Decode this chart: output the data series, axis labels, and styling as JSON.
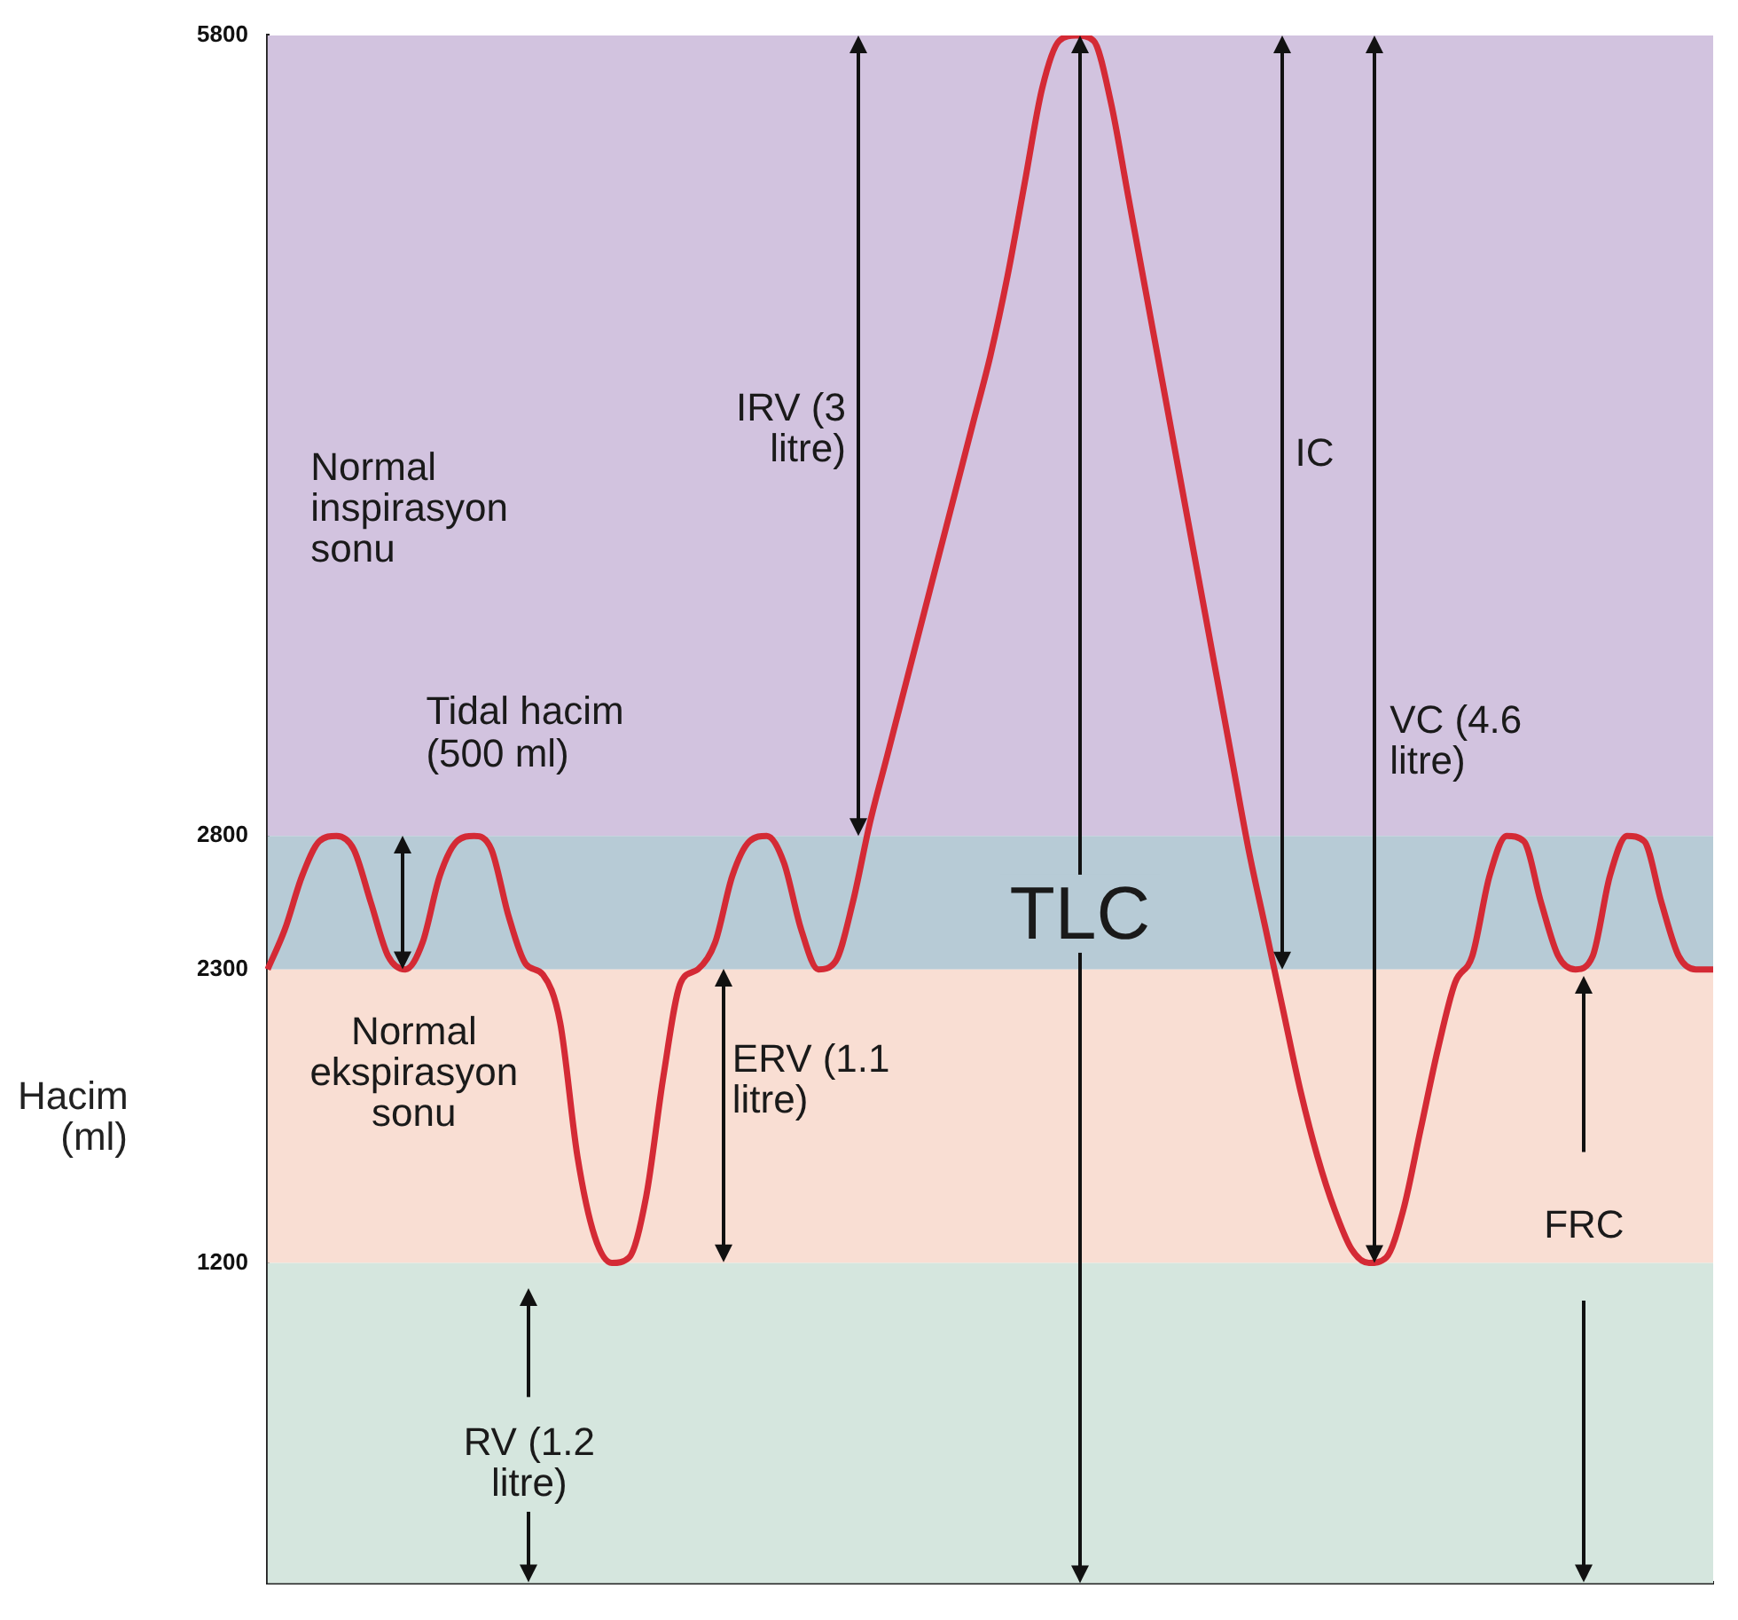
{
  "chart_data": {
    "type": "line",
    "ylabel": "Hacim (ml)",
    "categories": [
      null,
      null,
      null,
      null,
      null,
      null,
      null,
      null,
      null,
      null,
      null,
      null,
      null,
      null,
      null,
      null,
      null,
      null,
      null,
      null,
      null,
      null,
      null,
      null,
      null,
      null,
      null,
      null,
      null,
      null,
      null,
      null,
      null,
      null,
      null,
      null,
      null,
      null,
      null,
      null,
      null,
      null,
      null,
      null,
      null,
      null,
      null,
      null,
      null,
      null,
      null,
      null,
      null,
      null,
      null,
      null,
      null,
      null,
      null,
      null,
      null,
      null,
      null,
      null,
      null,
      null,
      null,
      null,
      null,
      null,
      null,
      null,
      null,
      null,
      null,
      null,
      null,
      null,
      null,
      null,
      null,
      null,
      null,
      null,
      null
    ],
    "series": [
      {
        "color": "#d42a35",
        "values": [
          2300,
          2450,
          2650,
          2780,
          2800,
          2750,
          2550,
          2350,
          2300,
          2400,
          2650,
          2780,
          2800,
          2750,
          2500,
          2320,
          2280,
          2100,
          1600,
          1300,
          1200,
          1220,
          1450,
          1900,
          2250,
          2300,
          2400,
          2650,
          2780,
          2800,
          2700,
          2450,
          2300,
          2330,
          2550,
          2850,
          3100,
          3350,
          3600,
          3850,
          4100,
          4350,
          4600,
          4900,
          5250,
          5600,
          5780,
          5800,
          5780,
          5550,
          5200,
          4850,
          4500,
          4150,
          3800,
          3450,
          3100,
          2750,
          2450,
          2150,
          1850,
          1600,
          1400,
          1250,
          1200,
          1220,
          1400,
          1700,
          2000,
          2250,
          2350,
          2650,
          2800,
          2780,
          2550,
          2350,
          2300,
          2350,
          2650,
          2800,
          2780,
          2550,
          2350,
          2300,
          2300
        ]
      }
    ],
    "ylim": [
      0,
      5800
    ],
    "yticks": [
      1200,
      2300,
      2800,
      5800
    ],
    "bands": [
      {
        "axis": "y",
        "from": 2800,
        "to": 5800,
        "color": "#d2c3df"
      },
      {
        "axis": "y",
        "from": 2300,
        "to": 2800,
        "color": "#b7cbd6"
      },
      {
        "axis": "y",
        "from": 1200,
        "to": 2300,
        "color": "#f9ded3"
      },
      {
        "axis": "y",
        "from": 0,
        "to": 1200,
        "color": "#d5e6de"
      }
    ],
    "annotations": [
      "Normal inspirasyon sonu",
      "Tidal hacim (500 ml)",
      "Normal ekspirasyon sonu",
      "IRV (3 litre)",
      "IC",
      "VC (4.6 litre)",
      "TLC",
      "ERV (1.1 litre)",
      "FRC",
      "RV (1.2 litre)"
    ],
    "grid": false,
    "legend": false,
    "tick_labels": "y",
    "marker": "none"
  }
}
